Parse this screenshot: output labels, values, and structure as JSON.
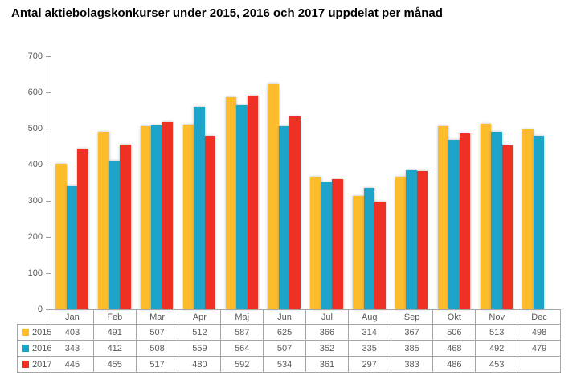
{
  "chart_data": {
    "type": "bar",
    "title": "Antal aktiebolagskonkurser under 2015, 2016 och 2017 uppdelat per månad",
    "categories": [
      "Jan",
      "Feb",
      "Mar",
      "Apr",
      "Maj",
      "Jun",
      "Jul",
      "Aug",
      "Sep",
      "Okt",
      "Nov",
      "Dec"
    ],
    "series": [
      {
        "name": "2015",
        "color": "#FDBC2C",
        "values": [
          403,
          491,
          507,
          512,
          587,
          625,
          366,
          314,
          367,
          506,
          513,
          498
        ]
      },
      {
        "name": "2016",
        "color": "#1FA4C9",
        "values": [
          343,
          412,
          508,
          559,
          564,
          507,
          352,
          335,
          385,
          468,
          492,
          479
        ]
      },
      {
        "name": "2017",
        "color": "#EE3124",
        "values": [
          445,
          455,
          517,
          480,
          592,
          534,
          361,
          297,
          383,
          486,
          453,
          null
        ]
      }
    ],
    "xlabel": "",
    "ylabel": "",
    "ylim": [
      0,
      700
    ],
    "yticks": [
      0,
      100,
      200,
      300,
      400,
      500,
      600,
      700
    ],
    "grid": false,
    "legend_position": "table-left",
    "axis_color": "#9d9d9d",
    "text_color": "#595959",
    "table_border_color": "#a6a6a6"
  }
}
